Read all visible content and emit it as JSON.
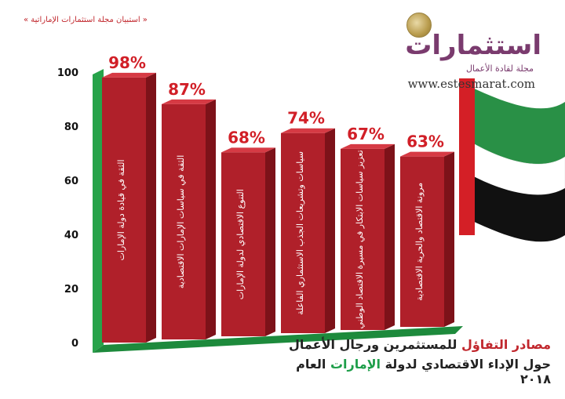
{
  "header": {
    "note": "« استبيان مجلة استثمارات الإماراتية »"
  },
  "logo": {
    "name": "استثمارات",
    "tagline": "مجلة لقادة الأعمال",
    "url": "www.estesmarat.com"
  },
  "title": {
    "line1": {
      "highlight": "مصادر التفاؤل",
      "rest": " للمستثمرين ورجال الأعمال"
    },
    "line2": {
      "before": "حول الإداء الاقتصادي لدولة ",
      "highlight": "الإمارات",
      "after": " العام ٢٠١٨"
    }
  },
  "colors": {
    "bar_front": "#b0202a",
    "bar_top": "#d63a44",
    "bar_side": "#7d1219",
    "value_label": "#d11f27",
    "axis_green": "#27a34a",
    "floor_green": "#1d8a3c",
    "flag_red": "#d41f26",
    "flag_green": "#1d8a3c"
  },
  "chart_data": {
    "type": "bar",
    "ylim": [
      0,
      100
    ],
    "yticks": [
      0,
      20,
      40,
      60,
      80,
      100
    ],
    "categories": [
      "الثقة في قيادة دولة الإمارات",
      "الثقة في سياسات الإمارات الاقتصادية",
      "التنوع الاقتصادي لدولة الإمارات",
      "سياسات وتشريعات الجذب الاستثماري الفاعلة",
      "تعزيز سياسات الابتكار في مسيرة الاقتصاد الوطني",
      "مرونة الاقتصاد والحرية الاقتصادية"
    ],
    "values": [
      98,
      87,
      68,
      74,
      67,
      63
    ],
    "value_labels": [
      "98%",
      "87%",
      "68%",
      "74%",
      "67%",
      "63%"
    ]
  }
}
